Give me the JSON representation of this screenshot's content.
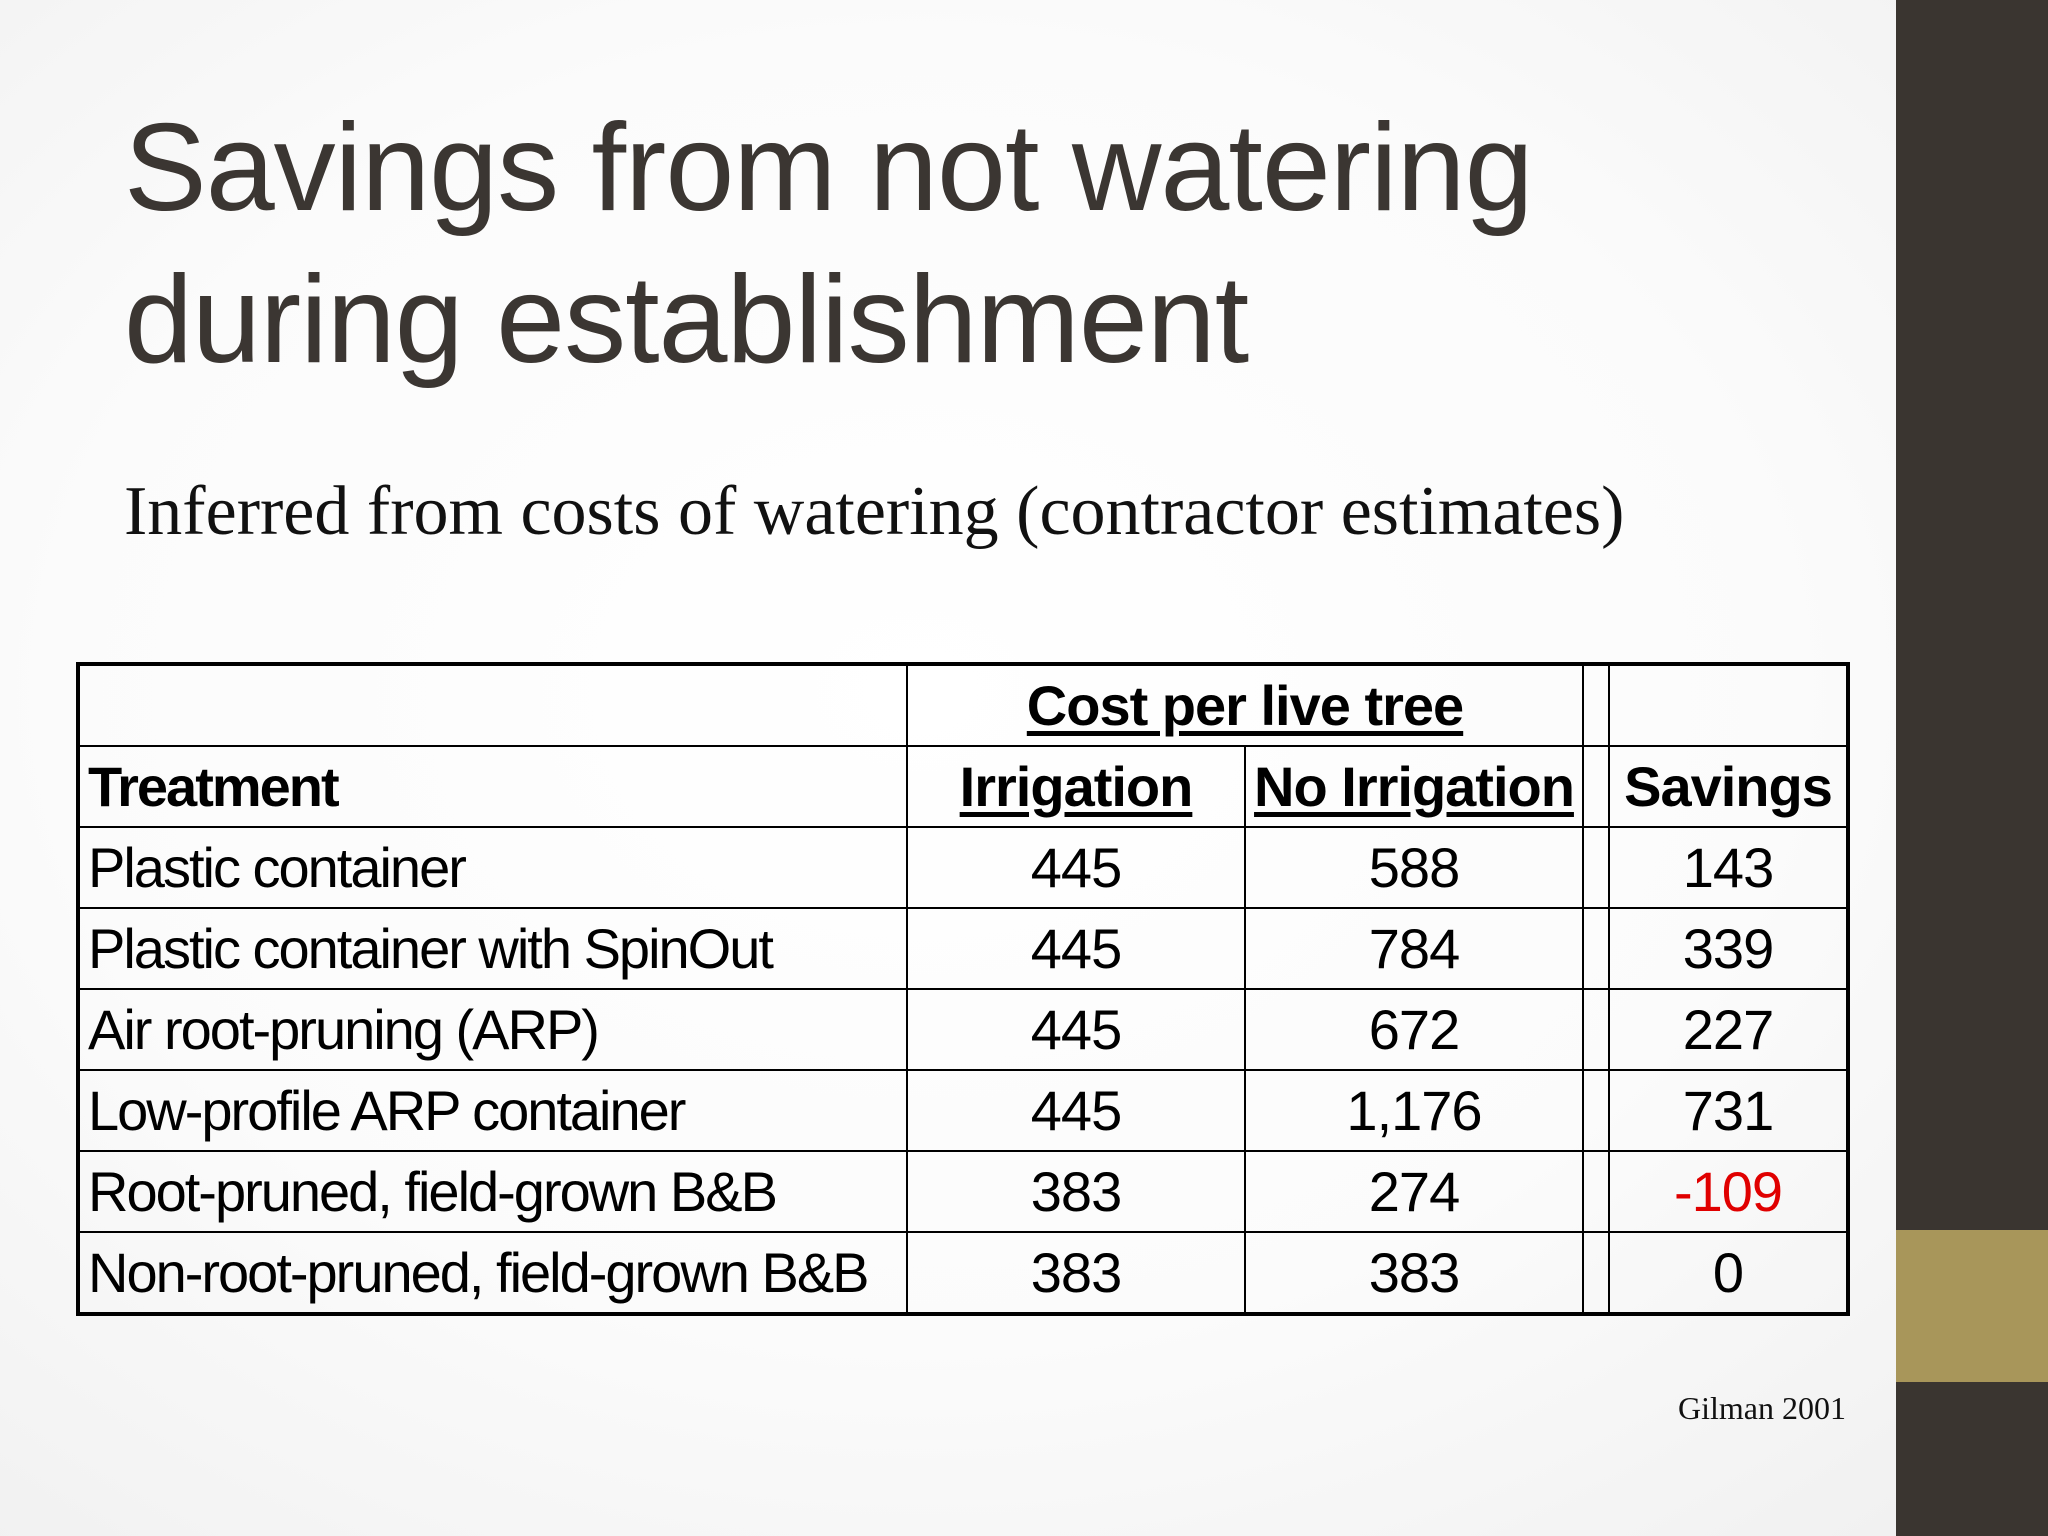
{
  "slide": {
    "title_line1": "Savings from not watering",
    "title_line2": "during establishment",
    "subtitle": "Inferred from costs of watering (contractor estimates)",
    "citation": "Gilman 2001"
  },
  "table": {
    "group_header": "Cost per live tree",
    "headers": {
      "treatment": "Treatment",
      "irrigation": "Irrigation",
      "no_irrigation": "No Irrigation",
      "savings": "Savings"
    },
    "rows": [
      {
        "treatment": "Plastic container",
        "irrigation": "445",
        "no_irrigation": "588",
        "savings": "143"
      },
      {
        "treatment": "Plastic container with SpinOut",
        "irrigation": "445",
        "no_irrigation": "784",
        "savings": "339"
      },
      {
        "treatment": "Air root-pruning (ARP)",
        "irrigation": "445",
        "no_irrigation": "672",
        "savings": "227"
      },
      {
        "treatment": "Low-profile ARP container",
        "irrigation": "445",
        "no_irrigation": "1,176",
        "savings": "731"
      },
      {
        "treatment": "Root-pruned, field-grown B&B",
        "irrigation": "383",
        "no_irrigation": "274",
        "savings": "-109"
      },
      {
        "treatment": "Non-root-pruned, field-grown B&B",
        "irrigation": "383",
        "no_irrigation": "383",
        "savings": "0"
      }
    ],
    "negative_color": "#e00000"
  },
  "theme": {
    "sidebar_color": "#3a3530",
    "accent_color": "#a8965a",
    "title_color": "#3b3632"
  }
}
